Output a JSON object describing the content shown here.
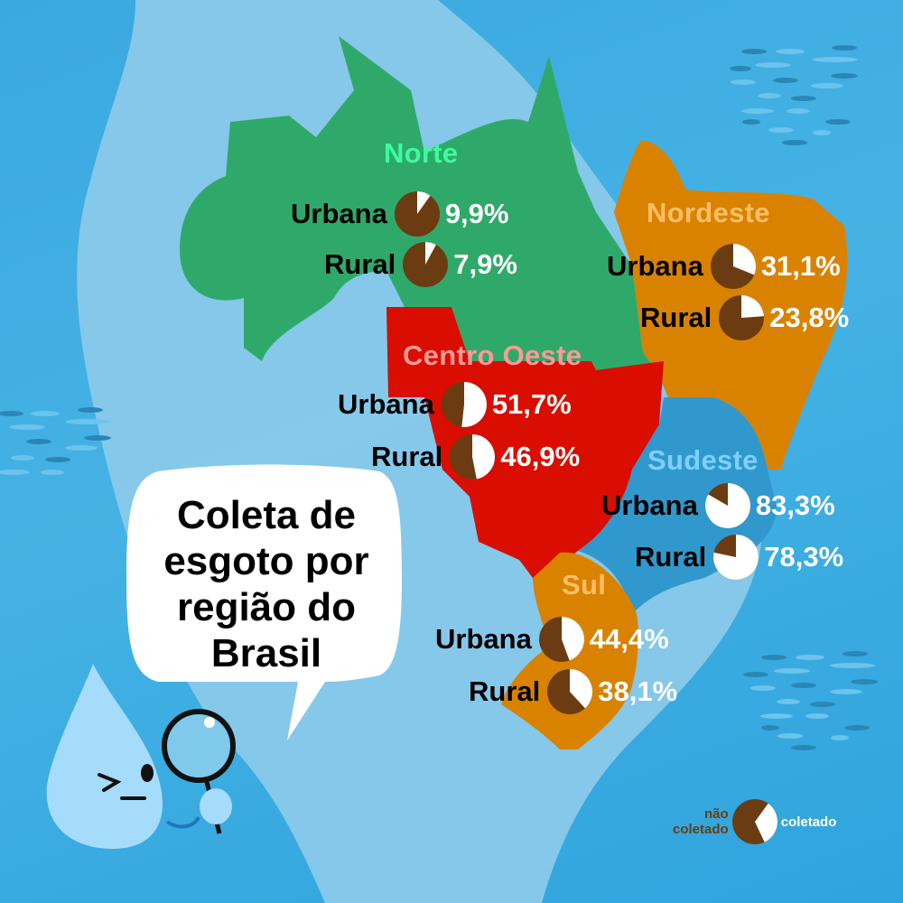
{
  "title_bubble": {
    "lines": [
      "Coleta de",
      "esgoto por",
      "região do",
      "Brasil"
    ]
  },
  "colors": {
    "background": "#3aa9e0",
    "continent": "#8ecbea",
    "norte": "#2fa96a",
    "norte_title": "#3dfc9c",
    "nordeste": "#d98200",
    "nordeste_title": "#ffbf66",
    "centro_oeste": "#d90d00",
    "centro_oeste_title": "#ff9a96",
    "sudeste": "#3098cc",
    "sudeste_title": "#7fd0ff",
    "sul": "#d98200",
    "sul_title": "#ffbf66",
    "not_collected": "#6b3c12",
    "collected": "#ffffff"
  },
  "regions": [
    {
      "id": "norte",
      "name": "Norte",
      "urbana_label": "Urbana",
      "urbana": "9,9%",
      "rural_label": "Rural",
      "rural": "7,9%"
    },
    {
      "id": "nordeste",
      "name": "Nordeste",
      "urbana_label": "Urbana",
      "urbana": "31,1%",
      "rural_label": "Rural",
      "rural": "23,8%"
    },
    {
      "id": "centro_oeste",
      "name": "Centro Oeste",
      "urbana_label": "Urbana",
      "urbana": "51,7%",
      "rural_label": "Rural",
      "rural": "46,9%"
    },
    {
      "id": "sudeste",
      "name": "Sudeste",
      "urbana_label": "Urbana",
      "urbana": "83,3%",
      "rural_label": "Rural",
      "rural": "78,3%"
    },
    {
      "id": "sul",
      "name": "Sul",
      "urbana_label": "Urbana",
      "urbana": "44,4%",
      "rural_label": "Rural",
      "rural": "38,1%"
    }
  ],
  "legend": {
    "not_collected": "não coletado",
    "not_collected_line1": "não",
    "not_collected_line2": "coletado",
    "collected": "coletado",
    "sample_pct": 33
  },
  "chart_data": {
    "type": "pie",
    "title": "Coleta de esgoto por região do Brasil",
    "legend": [
      "não coletado",
      "coletado"
    ],
    "categories": [
      "Norte",
      "Nordeste",
      "Centro Oeste",
      "Sudeste",
      "Sul"
    ],
    "series": [
      {
        "name": "Urbana",
        "values": [
          9.9,
          31.1,
          51.7,
          83.3,
          44.4
        ]
      },
      {
        "name": "Rural",
        "values": [
          7.9,
          23.8,
          46.9,
          78.3,
          38.1
        ]
      }
    ],
    "unit": "% coletado"
  }
}
